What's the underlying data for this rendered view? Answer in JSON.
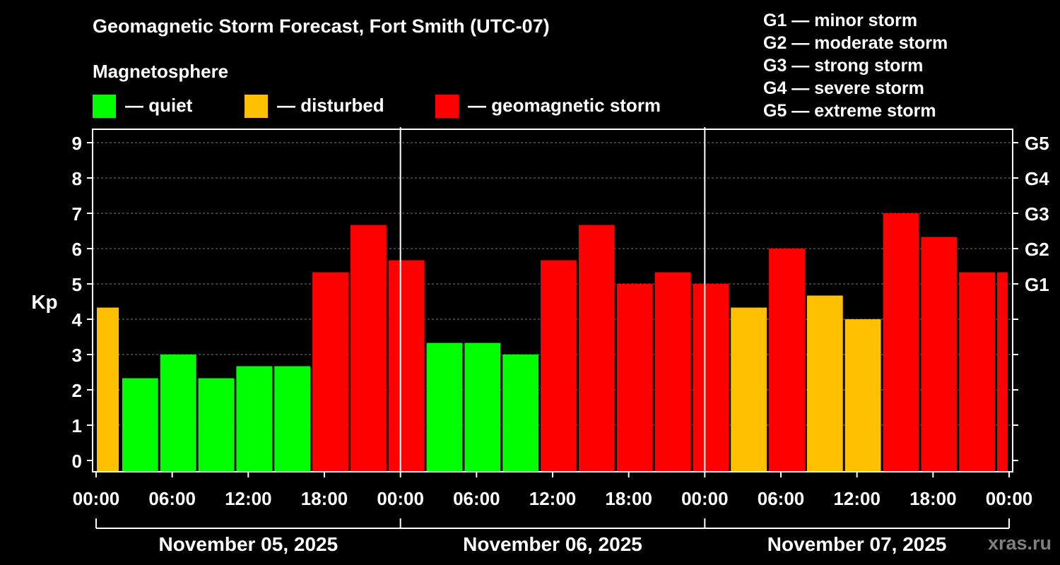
{
  "chart_data": {
    "type": "bar",
    "title": "Geomagnetic Storm Forecast, Fort Smith (UTC-07)",
    "ylabel": "Kp",
    "ylim": [
      0,
      9
    ],
    "yticks": [
      "0",
      "1",
      "2",
      "3",
      "4",
      "5",
      "6",
      "7",
      "8",
      "9"
    ],
    "right_axis_ticks": [
      {
        "kp": 5,
        "label": "G1"
      },
      {
        "kp": 6,
        "label": "G2"
      },
      {
        "kp": 7,
        "label": "G3"
      },
      {
        "kp": 8,
        "label": "G4"
      },
      {
        "kp": 9,
        "label": "G5"
      }
    ],
    "x_hours_range": [
      0,
      72
    ],
    "xtick_labels": [
      "00:00",
      "06:00",
      "12:00",
      "18:00",
      "00:00",
      "06:00",
      "12:00",
      "18:00",
      "00:00",
      "06:00",
      "12:00",
      "18:00",
      "00:00"
    ],
    "days": [
      "November 05, 2025",
      "November 06, 2025",
      "November 07, 2025"
    ],
    "bars": [
      {
        "start": 0,
        "end": 1.9,
        "value": 4.33,
        "level": "disturbed"
      },
      {
        "start": 2,
        "end": 5,
        "value": 2.33,
        "level": "quiet"
      },
      {
        "start": 5,
        "end": 8,
        "value": 3.0,
        "level": "quiet"
      },
      {
        "start": 8,
        "end": 11,
        "value": 2.33,
        "level": "quiet"
      },
      {
        "start": 11,
        "end": 14,
        "value": 2.67,
        "level": "quiet"
      },
      {
        "start": 14,
        "end": 17,
        "value": 2.67,
        "level": "quiet"
      },
      {
        "start": 17,
        "end": 20,
        "value": 5.33,
        "level": "storm"
      },
      {
        "start": 20,
        "end": 23,
        "value": 6.67,
        "level": "storm"
      },
      {
        "start": 23,
        "end": 26,
        "value": 5.67,
        "level": "storm"
      },
      {
        "start": 26,
        "end": 29,
        "value": 3.33,
        "level": "quiet"
      },
      {
        "start": 29,
        "end": 32,
        "value": 3.33,
        "level": "quiet"
      },
      {
        "start": 32,
        "end": 35,
        "value": 3.0,
        "level": "quiet"
      },
      {
        "start": 35,
        "end": 38,
        "value": 5.67,
        "level": "storm"
      },
      {
        "start": 38,
        "end": 41,
        "value": 6.67,
        "level": "storm"
      },
      {
        "start": 41,
        "end": 44,
        "value": 5.0,
        "level": "storm"
      },
      {
        "start": 44,
        "end": 47,
        "value": 5.33,
        "level": "storm"
      },
      {
        "start": 47,
        "end": 50,
        "value": 5.0,
        "level": "storm"
      },
      {
        "start": 50,
        "end": 53,
        "value": 4.33,
        "level": "disturbed"
      },
      {
        "start": 53,
        "end": 56,
        "value": 6.0,
        "level": "storm"
      },
      {
        "start": 56,
        "end": 59,
        "value": 4.67,
        "level": "disturbed"
      },
      {
        "start": 59,
        "end": 62,
        "value": 4.0,
        "level": "disturbed"
      },
      {
        "start": 62,
        "end": 65,
        "value": 7.0,
        "level": "storm"
      },
      {
        "start": 65,
        "end": 68,
        "value": 6.33,
        "level": "storm"
      },
      {
        "start": 68,
        "end": 71,
        "value": 5.33,
        "level": "storm"
      },
      {
        "start": 71,
        "end": 72,
        "value": 5.33,
        "level": "storm"
      }
    ],
    "grid": "dashed at each Kp level",
    "legend_placement": "top"
  },
  "legend": {
    "title": "Magnetosphere",
    "items": [
      {
        "key": "quiet",
        "label": "— quiet",
        "color": "#00ff00"
      },
      {
        "key": "disturbed",
        "label": "— disturbed",
        "color": "#ffc000"
      },
      {
        "key": "storm",
        "label": "— geomagnetic storm",
        "color": "#ff0000"
      }
    ]
  },
  "gscale": [
    "G1 — minor storm",
    "G2 — moderate storm",
    "G3 — strong storm",
    "G4 — severe storm",
    "G5 — extreme storm"
  ],
  "watermark": "xras.ru"
}
